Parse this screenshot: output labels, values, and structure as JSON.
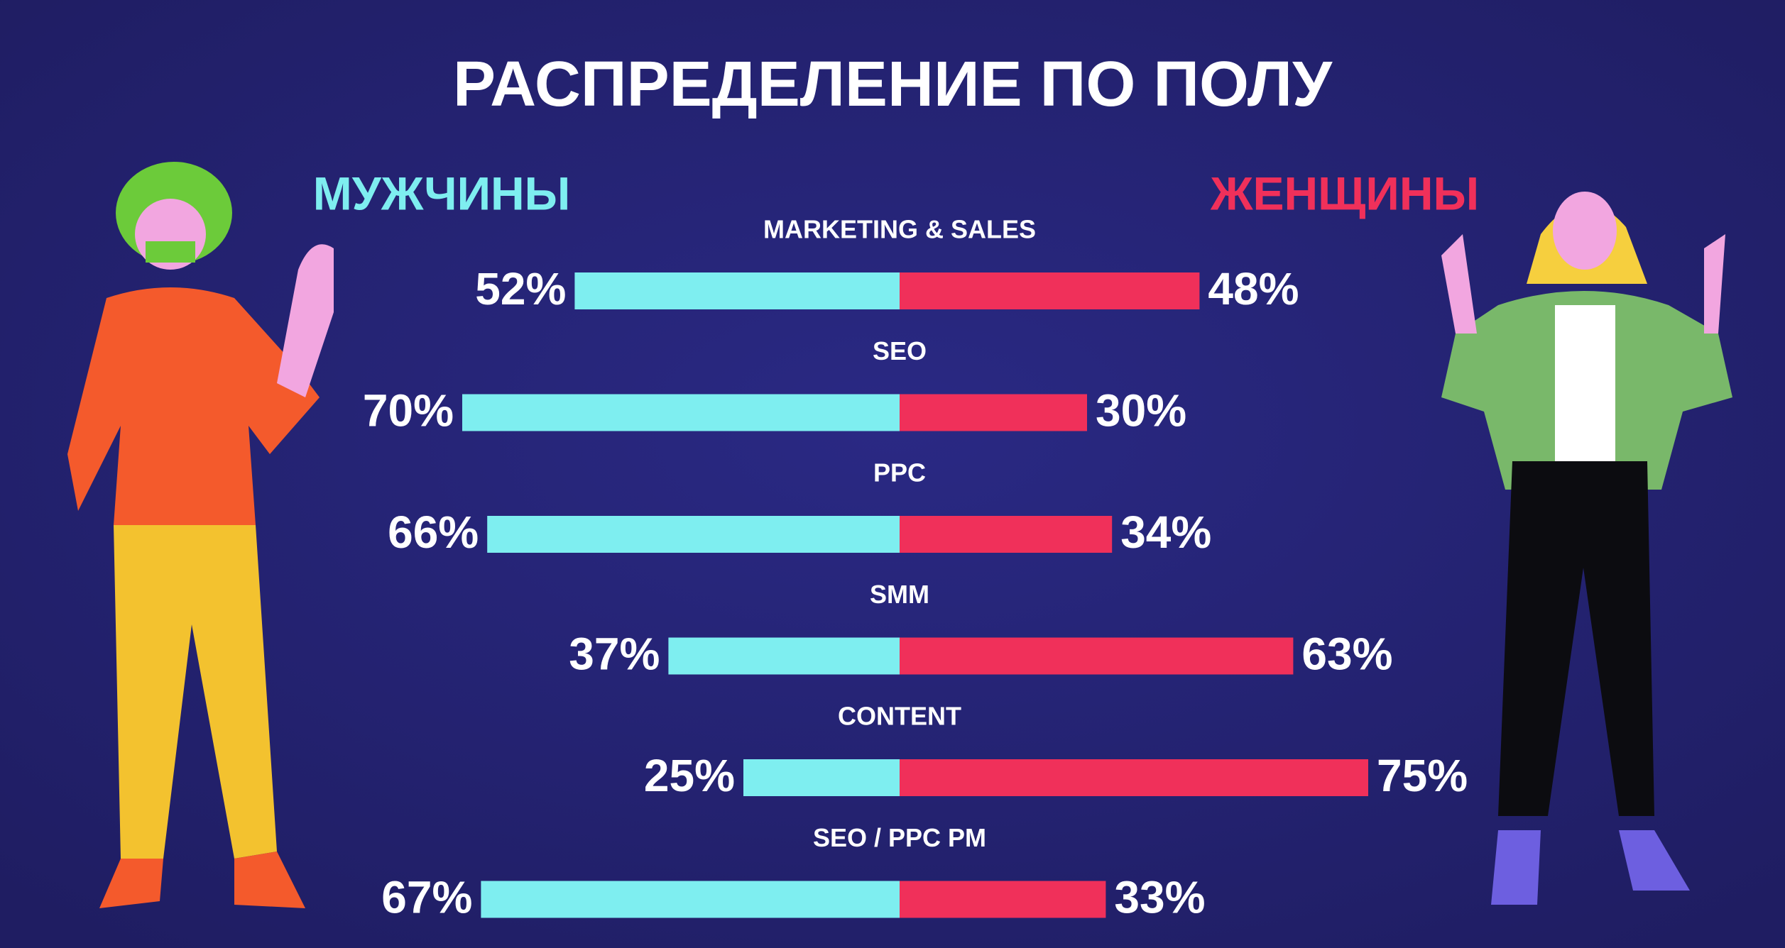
{
  "chart_data": {
    "type": "butterfly",
    "title": "РАСПРЕДЕЛЕНИЕ ПО ПОЛУ",
    "categories": [
      "MARKETING & SALES",
      "SEO",
      "PPC",
      "SMM",
      "CONTENT",
      "SEO / PPC PM"
    ],
    "series": [
      {
        "name": "МУЖЧИНЫ",
        "color": "#7eeef0",
        "values": [
          52,
          70,
          66,
          37,
          25,
          67
        ],
        "value_labels": [
          "52%",
          "70%",
          "66%",
          "37%",
          "25%",
          "67%"
        ]
      },
      {
        "name": "ЖЕНЩИНЫ",
        "color": "#f0305a",
        "values": [
          48,
          30,
          34,
          63,
          75,
          33
        ],
        "value_labels": [
          "48%",
          "30%",
          "34%",
          "63%",
          "75%",
          "33%"
        ]
      }
    ]
  }
}
